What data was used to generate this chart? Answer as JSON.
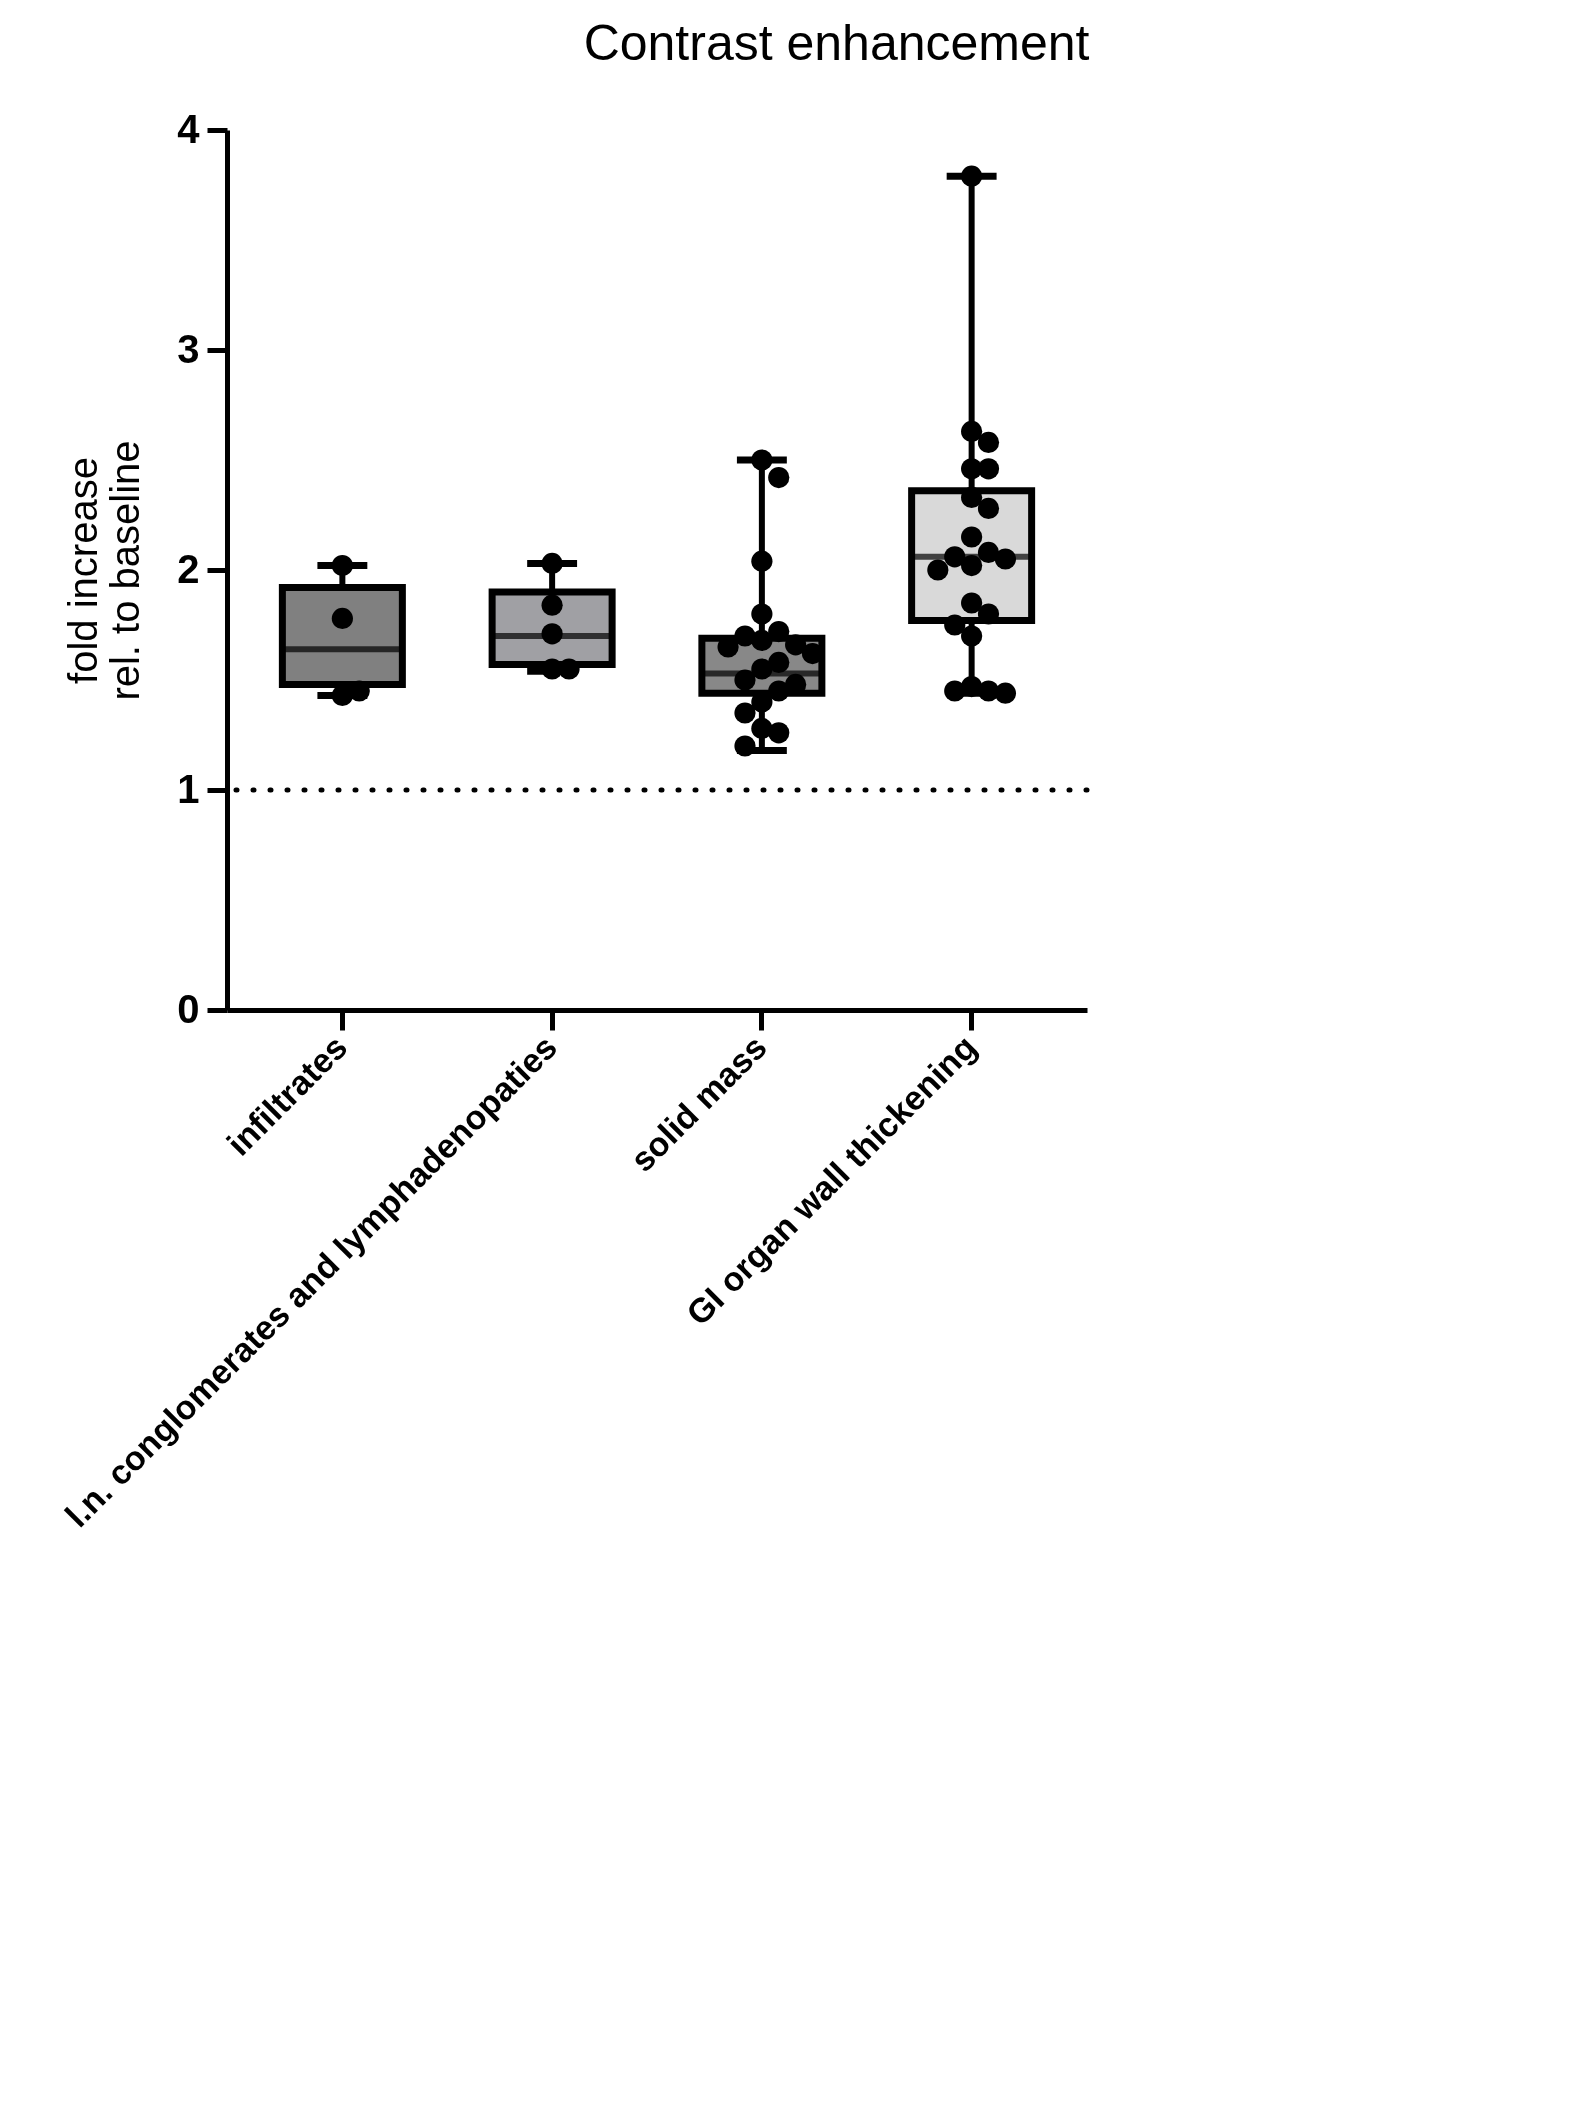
{
  "chart_data": {
    "type": "box",
    "title": "Contrast enhancement",
    "ylabel": "fold increase\nrel. to baseline",
    "categories": [
      "infiltrates",
      "l.n. conglomerates and lymphadenopaties",
      "solid mass",
      "GI organ wall thickening"
    ],
    "colors": [
      "#808080",
      "#a0a0a4",
      "#888888",
      "#d9d9d9"
    ],
    "boxes": [
      {
        "low": 1.43,
        "q1": 1.48,
        "median": 1.64,
        "q3": 1.92,
        "high": 2.02
      },
      {
        "low": 1.54,
        "q1": 1.57,
        "median": 1.7,
        "q3": 1.9,
        "high": 2.03
      },
      {
        "low": 1.18,
        "q1": 1.44,
        "median": 1.53,
        "q3": 1.69,
        "high": 2.5
      },
      {
        "low": 1.44,
        "q1": 1.77,
        "median": 2.06,
        "q3": 2.36,
        "high": 3.79
      }
    ],
    "series": [
      {
        "type": "scatter",
        "color": "#000000",
        "x": [
          "infiltrates",
          "infiltrates",
          "infiltrates",
          "infiltrates",
          "l.n. conglomerates and lymphadenopaties",
          "l.n. conglomerates and lymphadenopaties",
          "l.n. conglomerates and lymphadenopaties",
          "l.n. conglomerates and lymphadenopaties",
          "l.n. conglomerates and lymphadenopaties",
          "solid mass",
          "solid mass",
          "solid mass",
          "solid mass",
          "solid mass",
          "solid mass",
          "solid mass",
          "solid mass",
          "solid mass",
          "solid mass",
          "solid mass",
          "solid mass",
          "solid mass",
          "solid mass",
          "solid mass",
          "solid mass",
          "solid mass",
          "solid mass",
          "solid mass",
          "solid mass",
          "GI organ wall thickening",
          "GI organ wall thickening",
          "GI organ wall thickening",
          "GI organ wall thickening",
          "GI organ wall thickening",
          "GI organ wall thickening",
          "GI organ wall thickening",
          "GI organ wall thickening",
          "GI organ wall thickening",
          "GI organ wall thickening",
          "GI organ wall thickening",
          "GI organ wall thickening",
          "GI organ wall thickening",
          "GI organ wall thickening",
          "GI organ wall thickening",
          "GI organ wall thickening",
          "GI organ wall thickening",
          "GI organ wall thickening",
          "GI organ wall thickening",
          "GI organ wall thickening",
          "GI organ wall thickening"
        ],
        "values": [
          2.02,
          1.78,
          1.43,
          1.45,
          2.03,
          1.84,
          1.71,
          1.55,
          1.55,
          2.5,
          2.42,
          2.04,
          1.8,
          1.72,
          1.7,
          1.68,
          1.66,
          1.65,
          1.62,
          1.58,
          1.55,
          1.5,
          1.48,
          1.45,
          1.4,
          1.35,
          1.28,
          1.26,
          1.2,
          3.79,
          2.63,
          2.58,
          2.46,
          2.46,
          2.33,
          2.28,
          2.15,
          2.08,
          2.06,
          2.05,
          2.02,
          2.0,
          1.85,
          1.8,
          1.75,
          1.7,
          1.47,
          1.45,
          1.45,
          1.44
        ]
      }
    ],
    "ylim": [
      0,
      4
    ],
    "yticks": [
      0,
      1,
      2,
      3,
      4
    ],
    "ref_lines": [
      {
        "axis": "y",
        "value": 1,
        "line_style": "dotted"
      }
    ],
    "marker": "circle",
    "grid": false,
    "legend": false
  }
}
